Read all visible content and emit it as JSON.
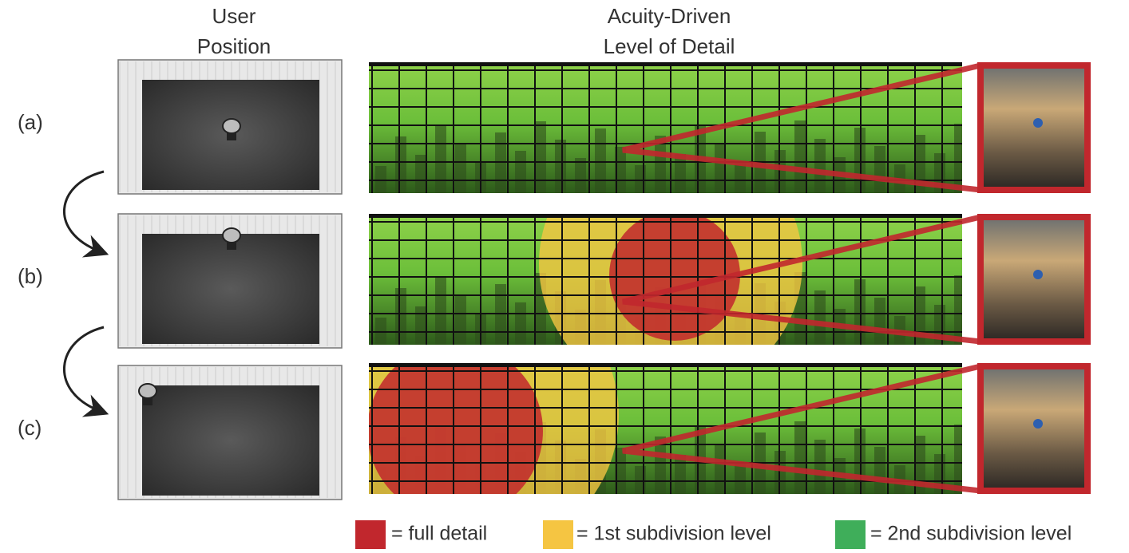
{
  "headers": {
    "user_position": [
      "User",
      "Position"
    ],
    "level_of_detail": [
      "Acuity-Driven",
      "Level of Detail"
    ]
  },
  "rows": [
    {
      "label": "(a)"
    },
    {
      "label": "(b)"
    },
    {
      "label": "(c)"
    }
  ],
  "legend": [
    {
      "label": "= full detail",
      "color": "#c1272d"
    },
    {
      "label": "= 1st subdivision level",
      "color": "#f5c542"
    },
    {
      "label": "= 2nd subdivision level",
      "color": "#3fae5a"
    }
  ]
}
